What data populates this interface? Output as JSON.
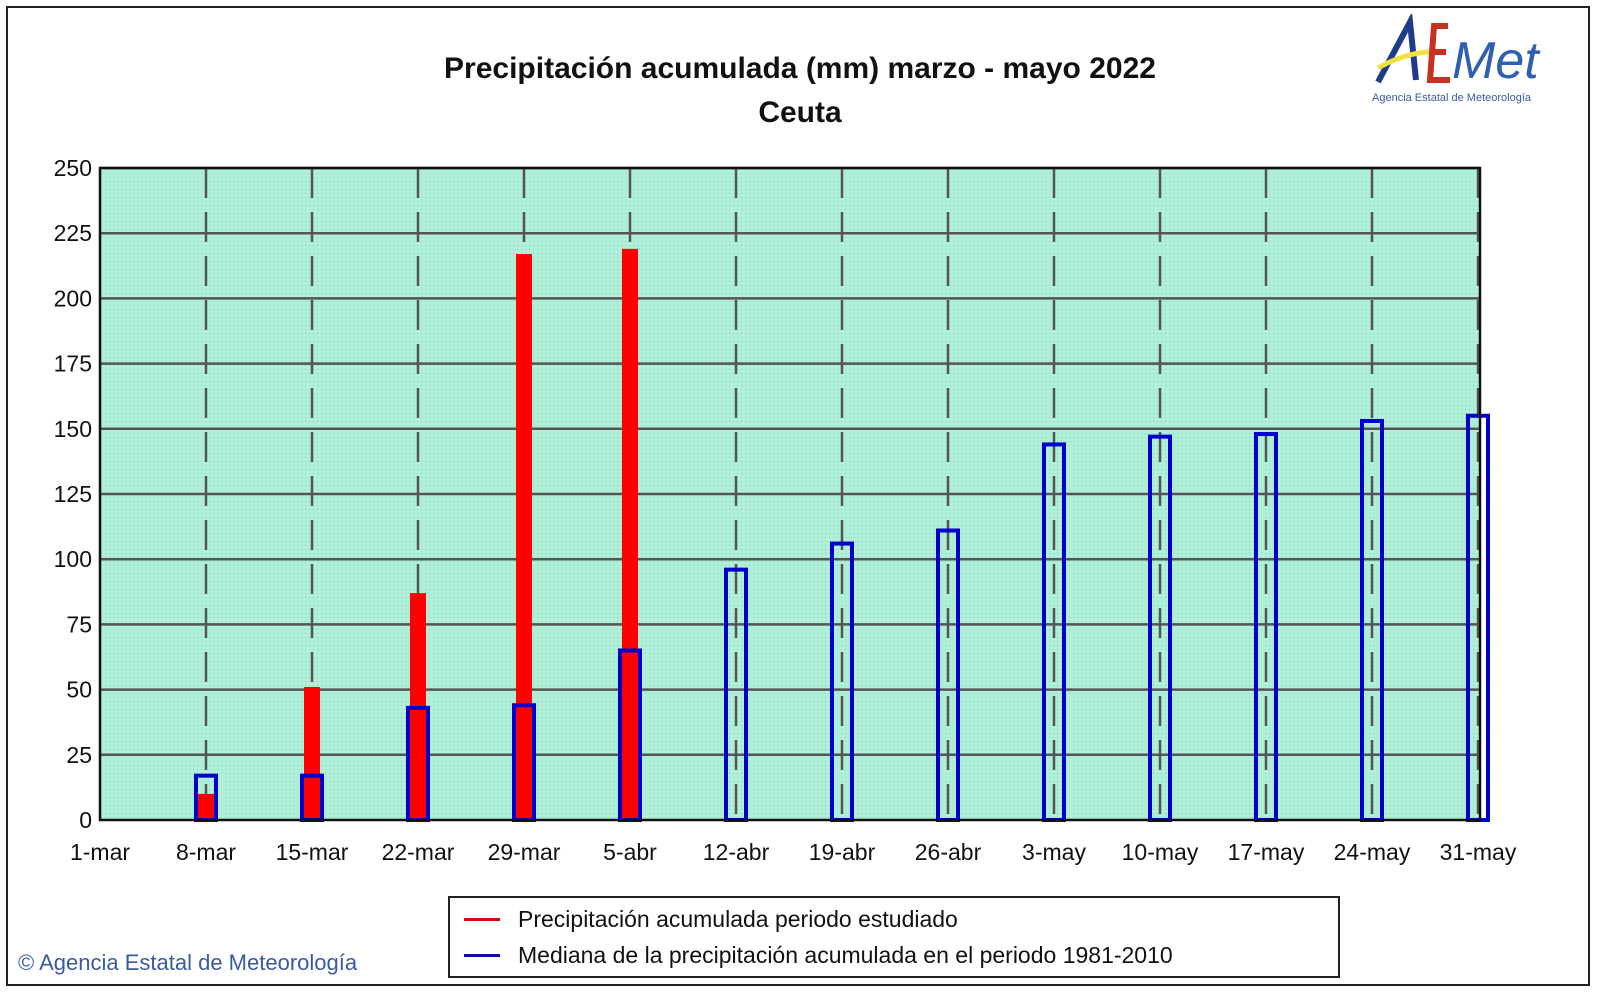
{
  "chart_data": {
    "type": "bar",
    "title": "Precipitación acumulada (mm) marzo - mayo 2022",
    "subtitle": "Ceuta",
    "categories": [
      "1-mar",
      "8-mar",
      "15-mar",
      "22-mar",
      "29-mar",
      "5-abr",
      "12-abr",
      "19-abr",
      "26-abr",
      "3-may",
      "10-may",
      "17-may",
      "24-may",
      "31-may"
    ],
    "yticks": [
      0,
      25,
      50,
      75,
      100,
      125,
      150,
      175,
      200,
      225,
      250
    ],
    "ylim": [
      0,
      250
    ],
    "grid": true,
    "legend_placement": "bottom",
    "series": [
      {
        "name": "Precipitación acumulada periodo estudiado",
        "color": "#ff0000",
        "values": [
          0,
          10,
          51,
          87,
          217,
          219,
          null,
          null,
          null,
          null,
          null,
          null,
          null,
          null
        ]
      },
      {
        "name": "Mediana de la precipitación acumulada en el periodo 1981-2010",
        "color": "#0000cc",
        "values": [
          0,
          17,
          17,
          43,
          44,
          65,
          96,
          106,
          111,
          144,
          147,
          148,
          153,
          155
        ]
      }
    ],
    "plot_background": "#b0f0d8"
  },
  "logo": {
    "text": "AEMet",
    "subtext": "Agencia Estatal de Meteorología"
  },
  "footer": {
    "copyright": "© Agencia Estatal de Meteorología"
  }
}
